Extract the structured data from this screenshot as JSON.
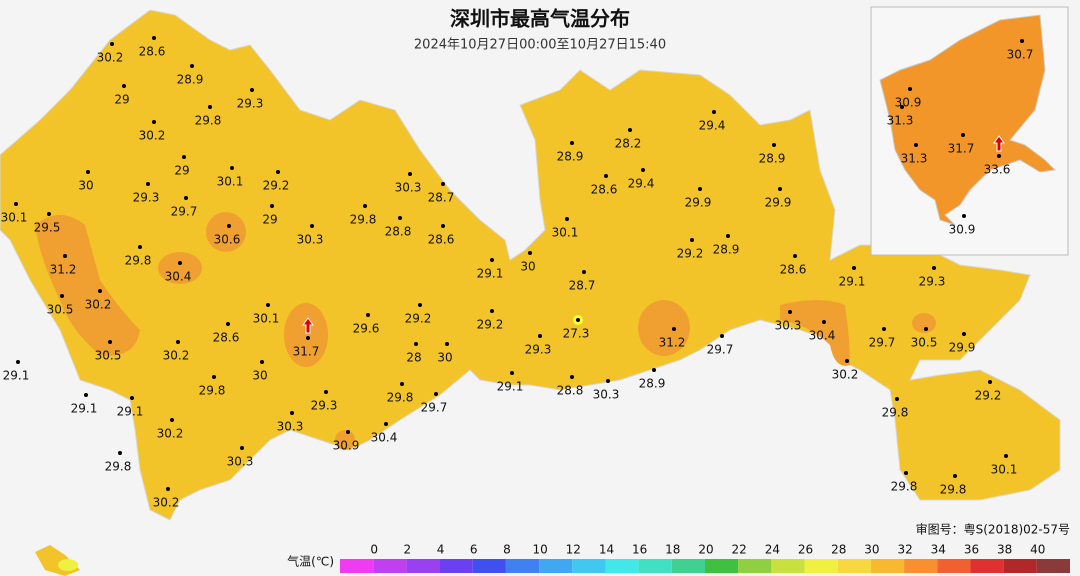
{
  "title": "深圳市最高气温分布",
  "subtitle": "2024年10月27日00:00至10月27日15:40",
  "stations": [
    30.2,
    28.6,
    28.9,
    29,
    29.3,
    29.8,
    30.2,
    29,
    30.1,
    30,
    29.2,
    30.3,
    28.7,
    29.3,
    29.7,
    29.8,
    29,
    28.8,
    28.6,
    30.6,
    30.3,
    30.1,
    29.5,
    31.2,
    29.8,
    30.4,
    30.2,
    30.5,
    30.5,
    30.2,
    30.1,
    28.6,
    31.7,
    29.6,
    29.2,
    29.2,
    29.1,
    30,
    30.1,
    28.7,
    27.3,
    28,
    30,
    29.3,
    29.1,
    28.8,
    30.3,
    28.9,
    31.2,
    29.7,
    30.3,
    30.4,
    30.2,
    29.1,
    29.3,
    29.7,
    30.5,
    29.9,
    29.8,
    29.2,
    30.1,
    29.8,
    29.8,
    28.6,
    29.2,
    28.9,
    29.9,
    29.9,
    28.6,
    29.4,
    28.9,
    28.2,
    29.4,
    28.9,
    29.7,
    29.8,
    29.3,
    30.3,
    30.9,
    30.4,
    29.8,
    30,
    29.1,
    29.1,
    29.1,
    30.2,
    30.3,
    29.8,
    30.2,
    30.7,
    30.9,
    31.3,
    31.3,
    31.7,
    33.6,
    30.9
  ],
  "approval": "审图号：粤S(2018)02-57号",
  "legend": {
    "label": "气温(℃)",
    "ticks": [
      0,
      2,
      4,
      6,
      8,
      10,
      12,
      14,
      16,
      18,
      20,
      22,
      24,
      26,
      28,
      30,
      32,
      34,
      36,
      38,
      40
    ],
    "colors": [
      "#f03cf0",
      "#c040f0",
      "#9a40f0",
      "#6a40f0",
      "#4050f0",
      "#4080f0",
      "#40a8f0",
      "#40c8f0",
      "#40e8e8",
      "#40e0c0",
      "#40d090",
      "#40c040",
      "#90d040",
      "#c8e040",
      "#f0f040",
      "#f8d840",
      "#f8b830",
      "#f89030",
      "#f06030",
      "#e03030",
      "#b02828",
      "#8b3a3a"
    ]
  }
}
